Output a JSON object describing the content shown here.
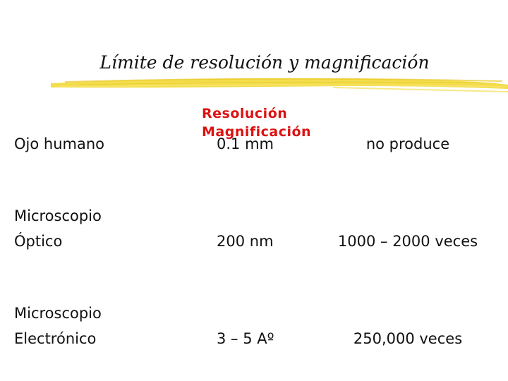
{
  "title": "Límite de resolución  y magnificación",
  "header": {
    "line1": "Resolución",
    "line2": "Magnificación"
  },
  "rows": [
    {
      "label_line1": "Ojo humano",
      "label_line2": "",
      "resolution": "0.1 mm",
      "magnification": "no produce"
    },
    {
      "label_line1": "Microscopio",
      "label_line2": "Óptico",
      "resolution": "200  nm",
      "magnification": "1000 – 2000 veces"
    },
    {
      "label_line1": "Microscopio",
      "label_line2": "Electrónico",
      "resolution": "3 – 5 Aº",
      "magnification": "250,000 veces"
    }
  ],
  "colors": {
    "header": "#dd1111",
    "underline": "#f2d93a",
    "text": "#111111"
  }
}
